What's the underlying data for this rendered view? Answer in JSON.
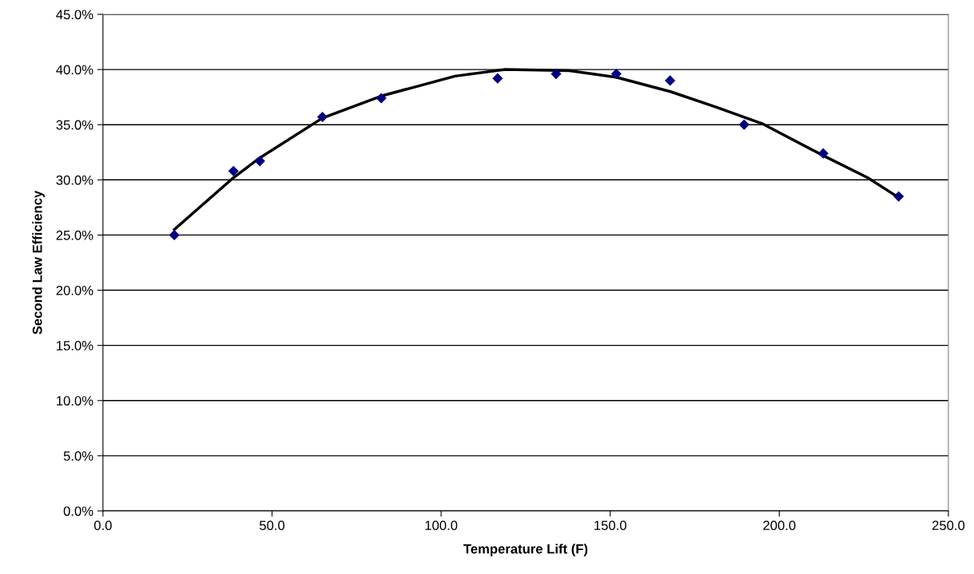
{
  "chart_data": {
    "type": "scatter",
    "xlabel": "Temperature Lift (F)",
    "ylabel": "Second Law Efficiency",
    "xlim": [
      0,
      250
    ],
    "xticks": [
      {
        "value": 0,
        "label": "0.0"
      },
      {
        "value": 50,
        "label": "50.0"
      },
      {
        "value": 100,
        "label": "100.0"
      },
      {
        "value": 150,
        "label": "150.0"
      },
      {
        "value": 200,
        "label": "200.0"
      },
      {
        "value": 250,
        "label": "250.0"
      }
    ],
    "ylim": [
      0,
      45
    ],
    "yticks": [
      {
        "value": 0,
        "label": "0.0%"
      },
      {
        "value": 5,
        "label": "5.0%"
      },
      {
        "value": 10,
        "label": "10.0%"
      },
      {
        "value": 15,
        "label": "15.0%"
      },
      {
        "value": 20,
        "label": "20.0%"
      },
      {
        "value": 25,
        "label": "25.0%"
      },
      {
        "value": 30,
        "label": "30.0%"
      },
      {
        "value": 35,
        "label": "35.0%"
      },
      {
        "value": 40,
        "label": "40.0%"
      },
      {
        "value": 45,
        "label": "45.0%"
      }
    ],
    "grid": "y",
    "legend": false,
    "series": [
      {
        "color": "#000080",
        "marker": "diamond",
        "x": [
          21.1,
          38.6,
          46.4,
          64.9,
          82.3,
          116.7,
          134.0,
          151.8,
          167.7,
          189.6,
          213.0,
          235.3
        ],
        "values": [
          25.0,
          30.8,
          31.7,
          35.7,
          37.4,
          39.2,
          39.6,
          39.6,
          39.0,
          35.0,
          32.4,
          28.5
        ]
      },
      {
        "type": "line",
        "color": "#000000",
        "marker": "none",
        "line_style": "solid",
        "x": [
          21.1,
          38.6,
          46.4,
          64.9,
          82.3,
          104.1,
          118.9,
          137.9,
          151.8,
          167.8,
          181.3,
          194.9,
          213.0,
          226.1,
          235.3
        ],
        "values": [
          25.5,
          30.2,
          32.0,
          35.6,
          37.6,
          39.4,
          40.0,
          39.9,
          39.3,
          38.0,
          36.6,
          35.1,
          32.2,
          30.2,
          28.4
        ]
      }
    ]
  }
}
